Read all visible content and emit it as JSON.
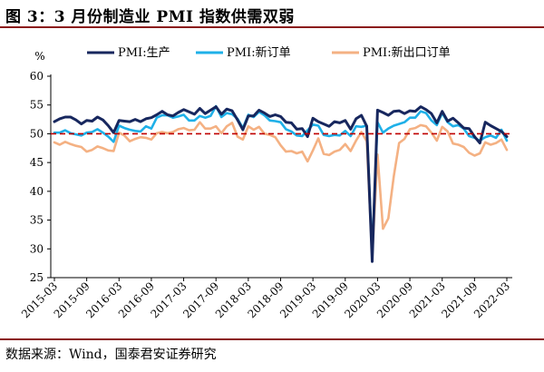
{
  "figure": {
    "title": "图 3：3 月份制造业 PMI 指数供需双弱",
    "source": "数据来源：Wind，国泰君安证券研究"
  },
  "colors": {
    "production": "#17275e",
    "new_orders": "#1fb0e8",
    "new_export_orders": "#f4b183",
    "reference_line": "#c00000",
    "frame": "#8b1a1a"
  },
  "chart_data": {
    "type": "line",
    "title": "",
    "ylabel": "%",
    "xlabel": "",
    "ylim": [
      25,
      60
    ],
    "yticks": [
      25,
      30,
      35,
      40,
      45,
      50,
      55,
      60
    ],
    "xtick_labels": [
      "2015-03",
      "2015-09",
      "2016-03",
      "2016-09",
      "2017-03",
      "2017-09",
      "2018-03",
      "2018-09",
      "2019-03",
      "2019-09",
      "2020-03",
      "2020-09",
      "2021-03",
      "2021-09",
      "2022-03"
    ],
    "legend_position": "top",
    "reference_line": 50,
    "grid": false,
    "x": [
      "2015-03",
      "2015-04",
      "2015-05",
      "2015-06",
      "2015-07",
      "2015-08",
      "2015-09",
      "2015-10",
      "2015-11",
      "2015-12",
      "2016-01",
      "2016-02",
      "2016-03",
      "2016-04",
      "2016-05",
      "2016-06",
      "2016-07",
      "2016-08",
      "2016-09",
      "2016-10",
      "2016-11",
      "2016-12",
      "2017-01",
      "2017-02",
      "2017-03",
      "2017-04",
      "2017-05",
      "2017-06",
      "2017-07",
      "2017-08",
      "2017-09",
      "2017-10",
      "2017-11",
      "2017-12",
      "2018-01",
      "2018-02",
      "2018-03",
      "2018-04",
      "2018-05",
      "2018-06",
      "2018-07",
      "2018-08",
      "2018-09",
      "2018-10",
      "2018-11",
      "2018-12",
      "2019-01",
      "2019-02",
      "2019-03",
      "2019-04",
      "2019-05",
      "2019-06",
      "2019-07",
      "2019-08",
      "2019-09",
      "2019-10",
      "2019-11",
      "2019-12",
      "2020-01",
      "2020-02",
      "2020-03",
      "2020-04",
      "2020-05",
      "2020-06",
      "2020-07",
      "2020-08",
      "2020-09",
      "2020-10",
      "2020-11",
      "2020-12",
      "2021-01",
      "2021-02",
      "2021-03",
      "2021-04",
      "2021-05",
      "2021-06",
      "2021-07",
      "2021-08",
      "2021-09",
      "2021-10",
      "2021-11",
      "2021-12",
      "2022-01",
      "2022-02",
      "2022-03"
    ],
    "series": [
      {
        "name": "PMI:生产",
        "color_key": "production",
        "values": [
          52.1,
          52.6,
          52.9,
          52.9,
          52.4,
          51.7,
          52.3,
          52.2,
          52.9,
          52.4,
          51.4,
          50.2,
          52.3,
          52.2,
          52.1,
          52.5,
          52.1,
          52.6,
          52.8,
          53.3,
          53.9,
          53.3,
          53.1,
          53.7,
          54.2,
          53.8,
          53.4,
          54.4,
          53.5,
          54.1,
          54.7,
          53.4,
          54.3,
          54.0,
          52.4,
          50.7,
          53.1,
          53.1,
          54.1,
          53.6,
          53.0,
          53.3,
          53.0,
          52.0,
          51.9,
          50.8,
          50.9,
          49.5,
          52.7,
          52.1,
          51.7,
          51.3,
          52.1,
          51.9,
          52.3,
          50.8,
          52.6,
          53.2,
          51.3,
          27.8,
          54.1,
          53.7,
          53.2,
          53.9,
          54.0,
          53.5,
          54.0,
          53.9,
          54.7,
          54.2,
          53.5,
          51.9,
          53.9,
          52.2,
          52.7,
          51.9,
          51.0,
          50.9,
          49.5,
          48.4,
          52.0,
          51.4,
          50.9,
          50.4,
          49.5
        ]
      },
      {
        "name": "PMI:新订单",
        "color_key": "new_orders",
        "values": [
          50.2,
          50.2,
          50.6,
          50.1,
          49.9,
          49.7,
          50.2,
          50.3,
          50.8,
          50.2,
          49.5,
          48.6,
          51.4,
          51.0,
          50.7,
          50.5,
          50.4,
          51.3,
          50.9,
          52.8,
          53.2,
          53.2,
          52.8,
          53.0,
          53.3,
          52.3,
          52.3,
          53.1,
          52.8,
          53.1,
          54.8,
          52.9,
          53.6,
          53.4,
          52.6,
          51.0,
          53.3,
          52.9,
          53.8,
          53.2,
          52.3,
          52.2,
          52.0,
          50.8,
          50.4,
          49.7,
          49.6,
          50.6,
          51.6,
          51.4,
          49.8,
          49.6,
          49.8,
          49.7,
          50.5,
          49.6,
          51.3,
          51.2,
          51.4,
          29.3,
          52.0,
          50.2,
          50.9,
          51.4,
          51.7,
          52.0,
          52.8,
          52.8,
          53.9,
          53.6,
          52.3,
          51.5,
          53.6,
          52.0,
          51.3,
          51.5,
          50.9,
          49.6,
          49.3,
          48.8,
          49.4,
          49.7,
          49.3,
          50.7,
          48.8
        ]
      },
      {
        "name": "PMI:新出口订单",
        "color_key": "new_export_orders",
        "values": [
          48.5,
          48.1,
          48.6,
          48.2,
          47.9,
          47.7,
          46.9,
          47.2,
          47.8,
          47.5,
          47.1,
          47.0,
          50.2,
          49.7,
          48.7,
          49.1,
          49.4,
          49.3,
          49.0,
          50.1,
          50.3,
          50.1,
          50.3,
          50.8,
          51.0,
          50.6,
          50.7,
          52.0,
          50.9,
          50.9,
          51.3,
          50.1,
          51.3,
          51.9,
          49.5,
          49.0,
          51.3,
          50.7,
          51.2,
          50.0,
          49.8,
          49.4,
          48.0,
          46.9,
          47.0,
          46.6,
          46.9,
          45.2,
          47.1,
          49.2,
          46.5,
          46.3,
          46.9,
          47.2,
          48.2,
          47.0,
          48.8,
          50.3,
          48.7,
          28.7,
          46.4,
          33.5,
          35.3,
          42.6,
          48.4,
          49.1,
          50.8,
          51.0,
          51.5,
          51.3,
          50.2,
          48.8,
          51.2,
          50.4,
          48.3,
          48.1,
          47.7,
          46.7,
          46.2,
          46.6,
          48.5,
          48.1,
          48.4,
          49.0,
          47.2
        ]
      }
    ]
  }
}
